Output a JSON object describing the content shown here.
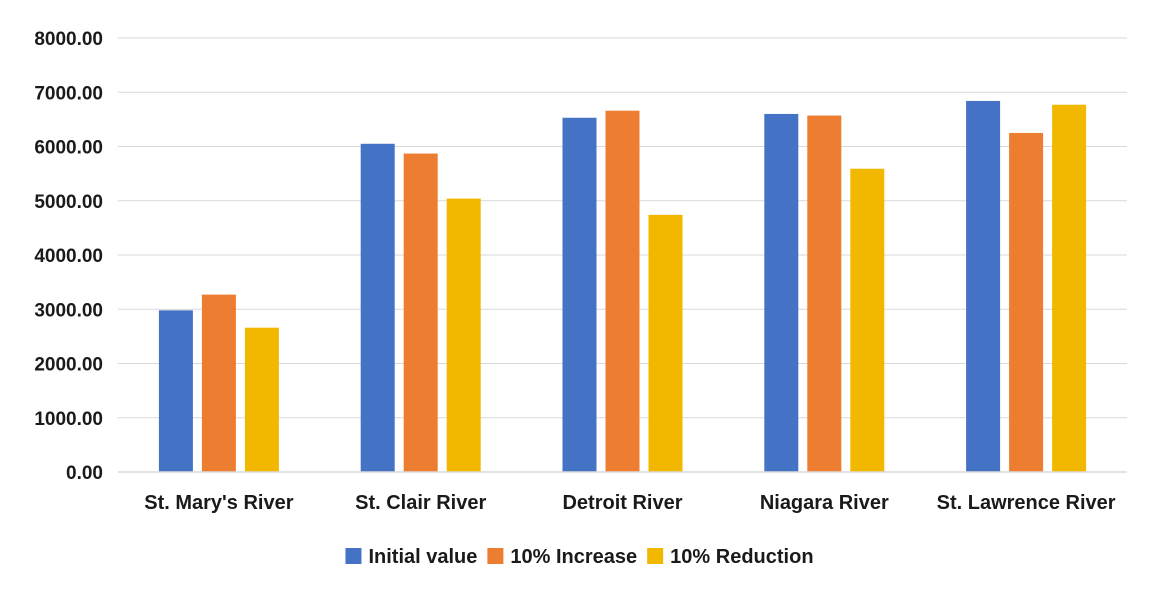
{
  "chart_data": {
    "type": "bar",
    "categories": [
      "St. Mary's River",
      "St. Clair River",
      "Detroit River",
      "Niagara River",
      "St. Lawrence River"
    ],
    "series": [
      {
        "name": "Initial value",
        "color": "#4472C4",
        "values": [
          2980,
          6050,
          6530,
          6600,
          6840
        ]
      },
      {
        "name": "10% Increase",
        "color": "#ED7D31",
        "values": [
          3270,
          5870,
          6660,
          6570,
          6250
        ]
      },
      {
        "name": "10% Reduction",
        "color": "#F2B800",
        "values": [
          2660,
          5040,
          4740,
          5590,
          6770
        ]
      }
    ],
    "ylim": [
      0,
      8000
    ],
    "yticks": [
      0,
      1000,
      2000,
      3000,
      4000,
      5000,
      6000,
      7000,
      8000
    ],
    "ytick_labels": [
      "0.00",
      "1000.00",
      "2000.00",
      "3000.00",
      "4000.00",
      "5000.00",
      "6000.00",
      "7000.00",
      "8000.00"
    ],
    "grid": true,
    "legend_position": "bottom"
  }
}
